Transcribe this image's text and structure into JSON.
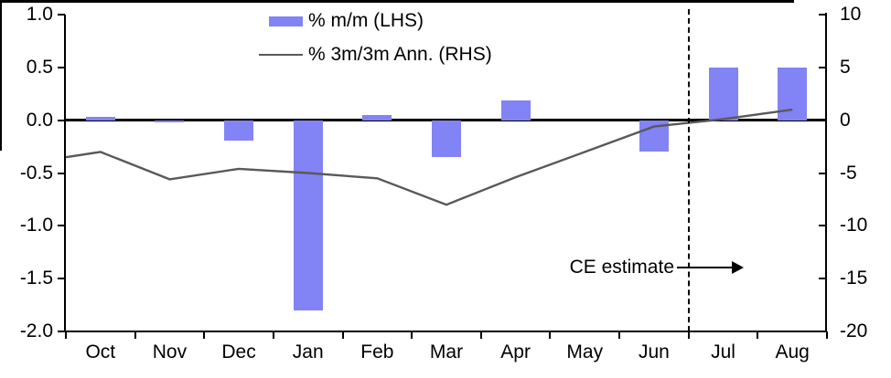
{
  "chart_data": {
    "type": "bar",
    "subtype": "combo bar+line, dual axis",
    "categories": [
      "Oct",
      "Nov",
      "Dec",
      "Jan",
      "Feb",
      "Mar",
      "Apr",
      "May",
      "Jun",
      "Jul",
      "Aug"
    ],
    "series": [
      {
        "name": "% m/m (LHS)",
        "type": "bar",
        "axis": "left",
        "color": "#8283f4",
        "values": [
          0.03,
          -0.02,
          -0.19,
          -1.8,
          0.05,
          -0.35,
          0.19,
          0.0,
          -0.3,
          0.5,
          0.5
        ]
      },
      {
        "name": "% 3m/3m Ann. (RHS)",
        "type": "line",
        "axis": "right",
        "color": "#595959",
        "edge_start_value": -3.5,
        "values": [
          -3.0,
          -5.6,
          -4.6,
          -5.0,
          -5.5,
          -8.0,
          -5.4,
          -3.0,
          -0.6,
          0.1,
          1.0
        ]
      }
    ],
    "left_axis": {
      "max": 1.0,
      "min": -2.0,
      "tick_labels": [
        "1.0",
        "0.5",
        "0.0",
        "-0.5",
        "-1.0",
        "-1.5",
        "-2.0"
      ]
    },
    "right_axis": {
      "max": 10,
      "min": -20,
      "tick_labels": [
        "10",
        "5",
        "0",
        "-5",
        "-10",
        "-15",
        "-20"
      ]
    },
    "grid": "off",
    "legend_position": "top-center",
    "forecast_divider_after_category": "Jun",
    "annotation": {
      "text": "CE estimate"
    }
  },
  "legend": {
    "bar_label": "% m/m (LHS)",
    "line_label": "% 3m/3m Ann. (RHS)"
  },
  "annotation": {
    "ce_estimate": "CE estimate"
  },
  "colors": {
    "bar_fill": "#8283f4",
    "line_stroke": "#595959",
    "axis": "#000000"
  }
}
